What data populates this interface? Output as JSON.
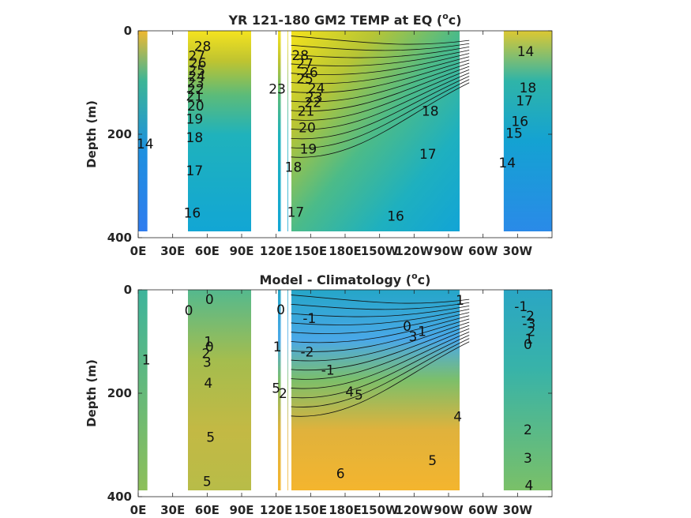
{
  "chart_data": [
    {
      "type": "heatmap",
      "title": "YR 121-180 GM2 TEMP at EQ (°c)",
      "title_main": "YR 121-180 GM2 TEMP at EQ (",
      "title_unit_sup": "o",
      "title_unit_tail": "c)",
      "xlabel": "",
      "ylabel": "Depth (m)",
      "xticks": [
        "0E",
        "30E",
        "60E",
        "90E",
        "120E",
        "150E",
        "180E",
        "150W",
        "120W",
        "90W",
        "60W",
        "30W"
      ],
      "yticks": [
        "0",
        "200",
        "400"
      ],
      "xlim": [
        0,
        360
      ],
      "ylim": [
        0,
        400
      ],
      "y_reversed": true,
      "colormap": "parula",
      "land_gaps": [
        [
          8,
          42
        ],
        [
          101,
          121
        ],
        [
          124,
          125
        ],
        [
          127,
          130
        ],
        [
          290,
          318
        ]
      ],
      "contour_labels": [
        {
          "text": "28",
          "lon": 56,
          "depth": 30
        },
        {
          "text": "27",
          "lon": 51,
          "depth": 48
        },
        {
          "text": "26",
          "lon": 52,
          "depth": 62
        },
        {
          "text": "25",
          "lon": 51,
          "depth": 76
        },
        {
          "text": "24",
          "lon": 51,
          "depth": 88
        },
        {
          "text": "23",
          "lon": 50,
          "depth": 100
        },
        {
          "text": "22",
          "lon": 50,
          "depth": 113
        },
        {
          "text": "21",
          "lon": 49,
          "depth": 126
        },
        {
          "text": "20",
          "lon": 50,
          "depth": 145
        },
        {
          "text": "19",
          "lon": 49,
          "depth": 170
        },
        {
          "text": "18",
          "lon": 49,
          "depth": 206
        },
        {
          "text": "17",
          "lon": 49,
          "depth": 270
        },
        {
          "text": "16",
          "lon": 47,
          "depth": 352
        },
        {
          "text": "14",
          "lon": 6,
          "depth": 218
        },
        {
          "text": "23",
          "lon": 121,
          "depth": 112
        },
        {
          "text": "28",
          "lon": 141,
          "depth": 47
        },
        {
          "text": "27",
          "lon": 145,
          "depth": 63
        },
        {
          "text": "26",
          "lon": 149,
          "depth": 80
        },
        {
          "text": "25",
          "lon": 145,
          "depth": 92
        },
        {
          "text": "24",
          "lon": 155,
          "depth": 111
        },
        {
          "text": "23",
          "lon": 153,
          "depth": 128
        },
        {
          "text": "22",
          "lon": 152,
          "depth": 138
        },
        {
          "text": "21",
          "lon": 146,
          "depth": 155
        },
        {
          "text": "20",
          "lon": 147,
          "depth": 187
        },
        {
          "text": "19",
          "lon": 148,
          "depth": 228
        },
        {
          "text": "18",
          "lon": 135,
          "depth": 263
        },
        {
          "text": "17",
          "lon": 137,
          "depth": 350
        },
        {
          "text": "16",
          "lon": 224,
          "depth": 358
        },
        {
          "text": "17",
          "lon": 252,
          "depth": 238
        },
        {
          "text": "18",
          "lon": 254,
          "depth": 155
        },
        {
          "text": "14",
          "lon": 337,
          "depth": 40
        },
        {
          "text": "18",
          "lon": 339,
          "depth": 110
        },
        {
          "text": "17",
          "lon": 336,
          "depth": 135
        },
        {
          "text": "16",
          "lon": 332,
          "depth": 175
        },
        {
          "text": "15",
          "lon": 327,
          "depth": 198
        },
        {
          "text": "14",
          "lon": 321,
          "depth": 255
        }
      ]
    },
    {
      "type": "heatmap",
      "title": "Model - Climatology (°c)",
      "title_main": "Model - Climatology (",
      "title_unit_sup": "o",
      "title_unit_tail": "c)",
      "xlabel": "",
      "ylabel": "Depth (m)",
      "xticks": [
        "0E",
        "30E",
        "60E",
        "90E",
        "120E",
        "150E",
        "180E",
        "150W",
        "120W",
        "90W",
        "60W",
        "30W"
      ],
      "yticks": [
        "0",
        "200",
        "400"
      ],
      "xlim": [
        0,
        360
      ],
      "ylim": [
        0,
        400
      ],
      "y_reversed": true,
      "colormap": "parula",
      "land_gaps": [
        [
          8,
          42
        ],
        [
          101,
          121
        ],
        [
          124,
          125
        ],
        [
          127,
          130
        ],
        [
          290,
          318
        ]
      ],
      "contour_labels": [
        {
          "text": "0",
          "lon": 62,
          "depth": 18
        },
        {
          "text": "0",
          "lon": 44,
          "depth": 40
        },
        {
          "text": "1",
          "lon": 61,
          "depth": 100
        },
        {
          "text": "0",
          "lon": 62,
          "depth": 110
        },
        {
          "text": "2",
          "lon": 59,
          "depth": 123
        },
        {
          "text": "3",
          "lon": 60,
          "depth": 140
        },
        {
          "text": "4",
          "lon": 61,
          "depth": 180
        },
        {
          "text": "5",
          "lon": 63,
          "depth": 285
        },
        {
          "text": "5",
          "lon": 60,
          "depth": 370
        },
        {
          "text": "1",
          "lon": 7,
          "depth": 135
        },
        {
          "text": "0",
          "lon": 124,
          "depth": 38
        },
        {
          "text": "1",
          "lon": 121,
          "depth": 110
        },
        {
          "text": "5",
          "lon": 120,
          "depth": 190
        },
        {
          "text": "2",
          "lon": 126,
          "depth": 200
        },
        {
          "text": "-1",
          "lon": 149,
          "depth": 55
        },
        {
          "text": "-2",
          "lon": 147,
          "depth": 120
        },
        {
          "text": "-1",
          "lon": 165,
          "depth": 155
        },
        {
          "text": "0",
          "lon": 234,
          "depth": 70
        },
        {
          "text": "1",
          "lon": 247,
          "depth": 80
        },
        {
          "text": "3",
          "lon": 239,
          "depth": 90
        },
        {
          "text": "4",
          "lon": 184,
          "depth": 197
        },
        {
          "text": "5",
          "lon": 192,
          "depth": 203
        },
        {
          "text": "4",
          "lon": 278,
          "depth": 245
        },
        {
          "text": "5",
          "lon": 256,
          "depth": 330
        },
        {
          "text": "6",
          "lon": 176,
          "depth": 355
        },
        {
          "text": "1",
          "lon": 280,
          "depth": 20
        },
        {
          "text": "-1",
          "lon": 333,
          "depth": 32
        },
        {
          "text": "-2",
          "lon": 339,
          "depth": 50
        },
        {
          "text": "-3",
          "lon": 340,
          "depth": 65
        },
        {
          "text": "2",
          "lon": 342,
          "depth": 80
        },
        {
          "text": "1",
          "lon": 340,
          "depth": 95
        },
        {
          "text": "0",
          "lon": 339,
          "depth": 105
        },
        {
          "text": "2",
          "lon": 339,
          "depth": 270
        },
        {
          "text": "3",
          "lon": 339,
          "depth": 325
        },
        {
          "text": "4",
          "lon": 340,
          "depth": 378
        }
      ]
    }
  ]
}
